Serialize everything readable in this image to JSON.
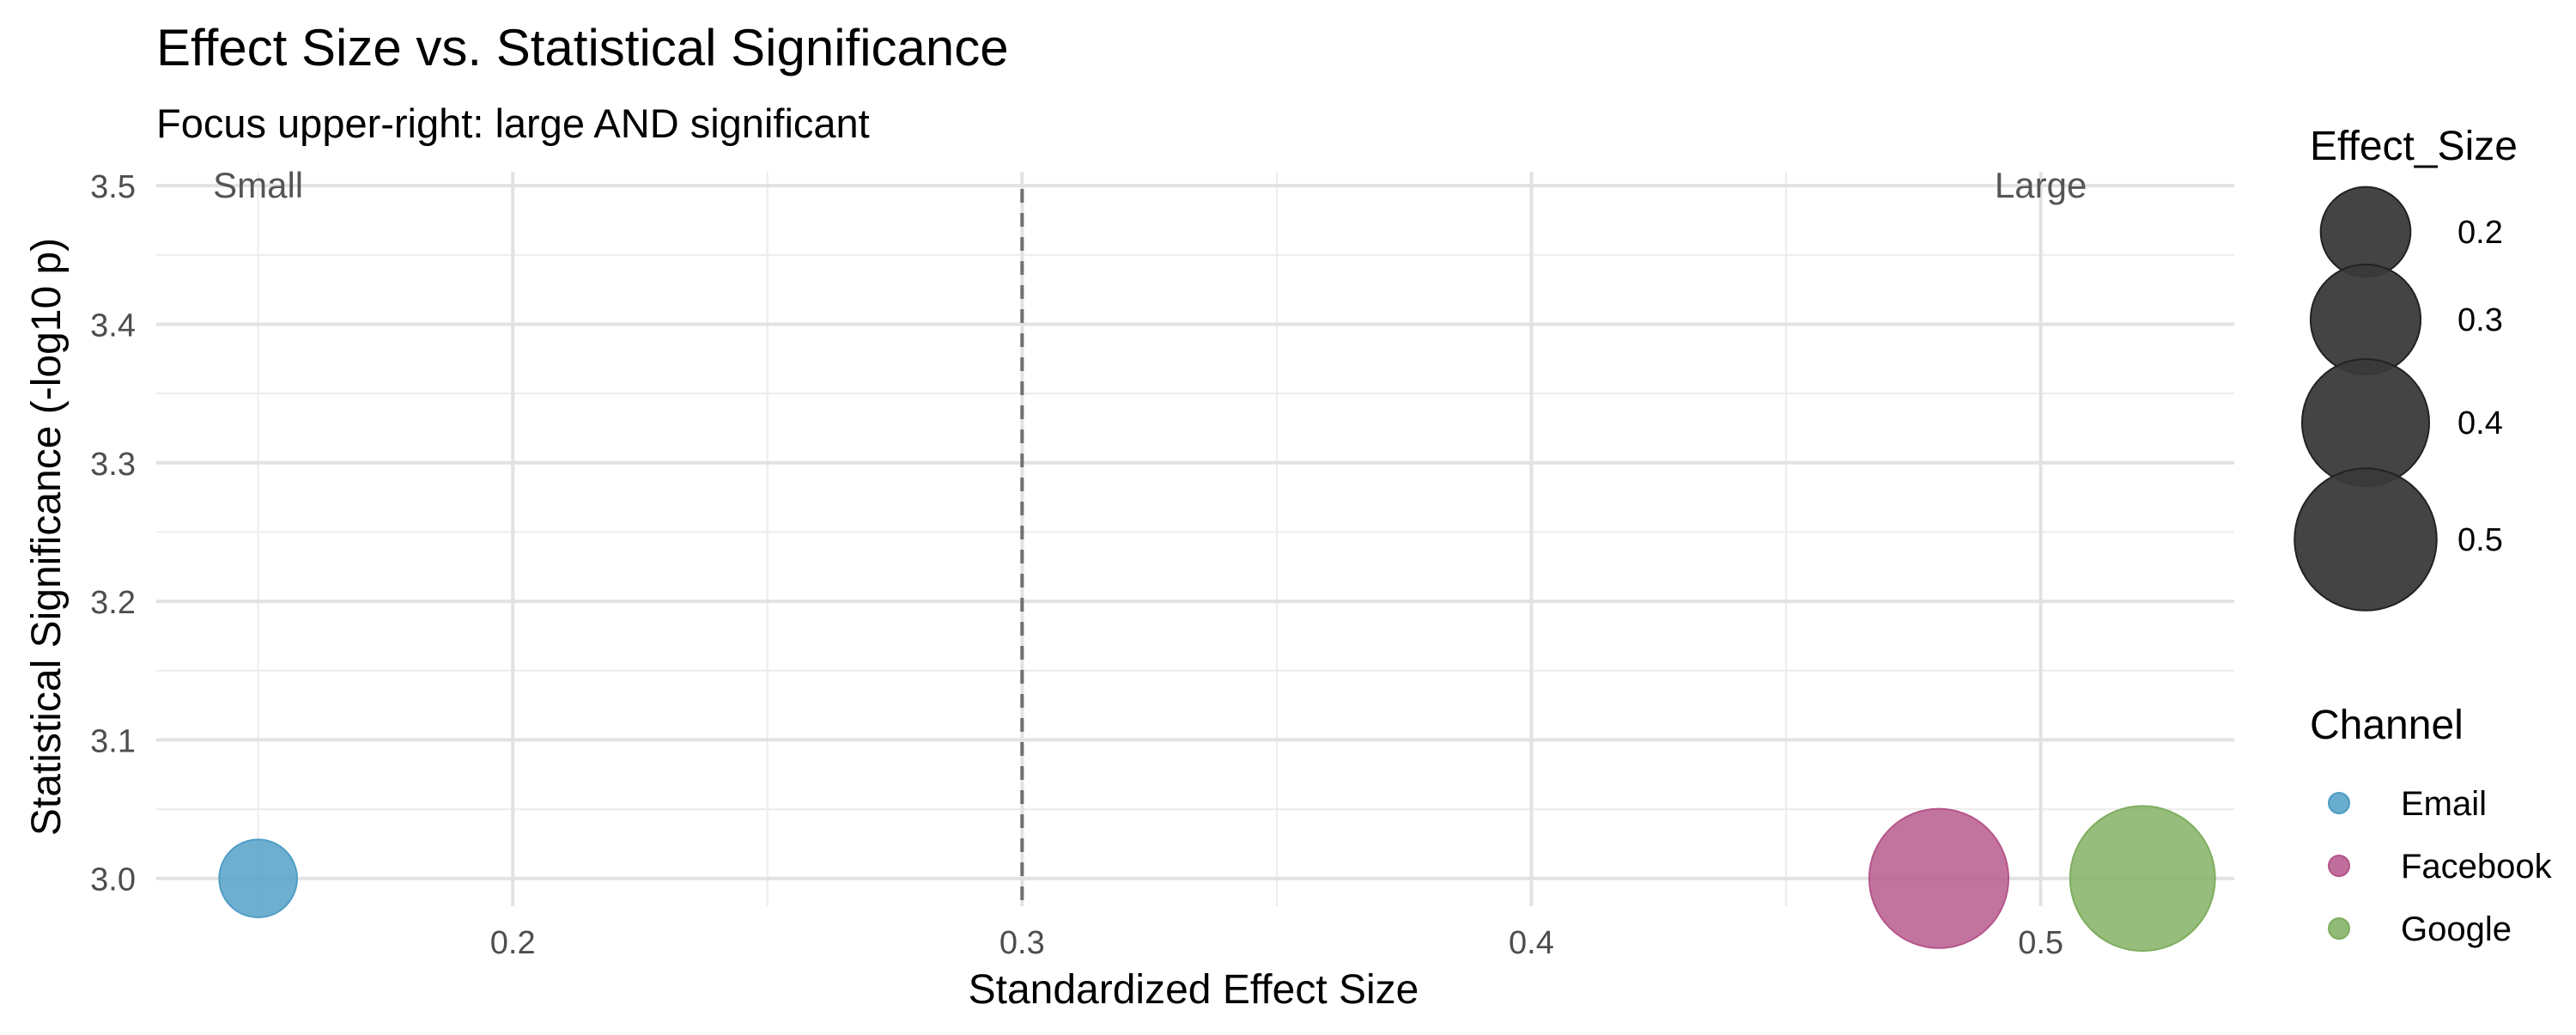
{
  "chart_data": {
    "type": "scatter",
    "title": "Effect Size vs. Statistical Significance",
    "subtitle": "Focus upper-right: large AND significant",
    "xlabel": "Standardized Effect Size",
    "ylabel": "Statistical Significance (-log10 p)",
    "xlim": [
      0.13,
      0.538
    ],
    "ylim": [
      2.98,
      3.51
    ],
    "x_ticks": [
      0.2,
      0.3,
      0.4,
      0.5
    ],
    "y_ticks": [
      3.0,
      3.1,
      3.2,
      3.3,
      3.4,
      3.5
    ],
    "x_tick_labels": [
      "0.2",
      "0.3",
      "0.4",
      "0.5"
    ],
    "y_tick_labels": [
      "3.0",
      "3.1",
      "3.2",
      "3.3",
      "3.4",
      "3.5"
    ],
    "grid": true,
    "reference_line": {
      "x": 0.3,
      "style": "dashed"
    },
    "annotations": [
      {
        "text": "Small",
        "x": 0.15,
        "y": 3.5
      },
      {
        "text": "Large",
        "x": 0.5,
        "y": 3.5
      }
    ],
    "series": [
      {
        "name": "Email",
        "color": "#4E9DC6",
        "points": [
          {
            "x": 0.15,
            "y": 3.0,
            "effect_size": 0.15
          }
        ]
      },
      {
        "name": "Facebook",
        "color": "#B5558A",
        "points": [
          {
            "x": 0.48,
            "y": 3.0,
            "effect_size": 0.48
          }
        ]
      },
      {
        "name": "Google",
        "color": "#7FAE5F",
        "points": [
          {
            "x": 0.52,
            "y": 3.0,
            "effect_size": 0.52
          }
        ]
      }
    ],
    "size_legend": {
      "title": "Effect_Size",
      "color": "#3a3a3a",
      "entries": [
        {
          "label": "0.2",
          "value": 0.2
        },
        {
          "label": "0.3",
          "value": 0.3
        },
        {
          "label": "0.4",
          "value": 0.4
        },
        {
          "label": "0.5",
          "value": 0.5
        }
      ]
    },
    "color_legend": {
      "title": "Channel"
    },
    "legend_position": "right"
  }
}
